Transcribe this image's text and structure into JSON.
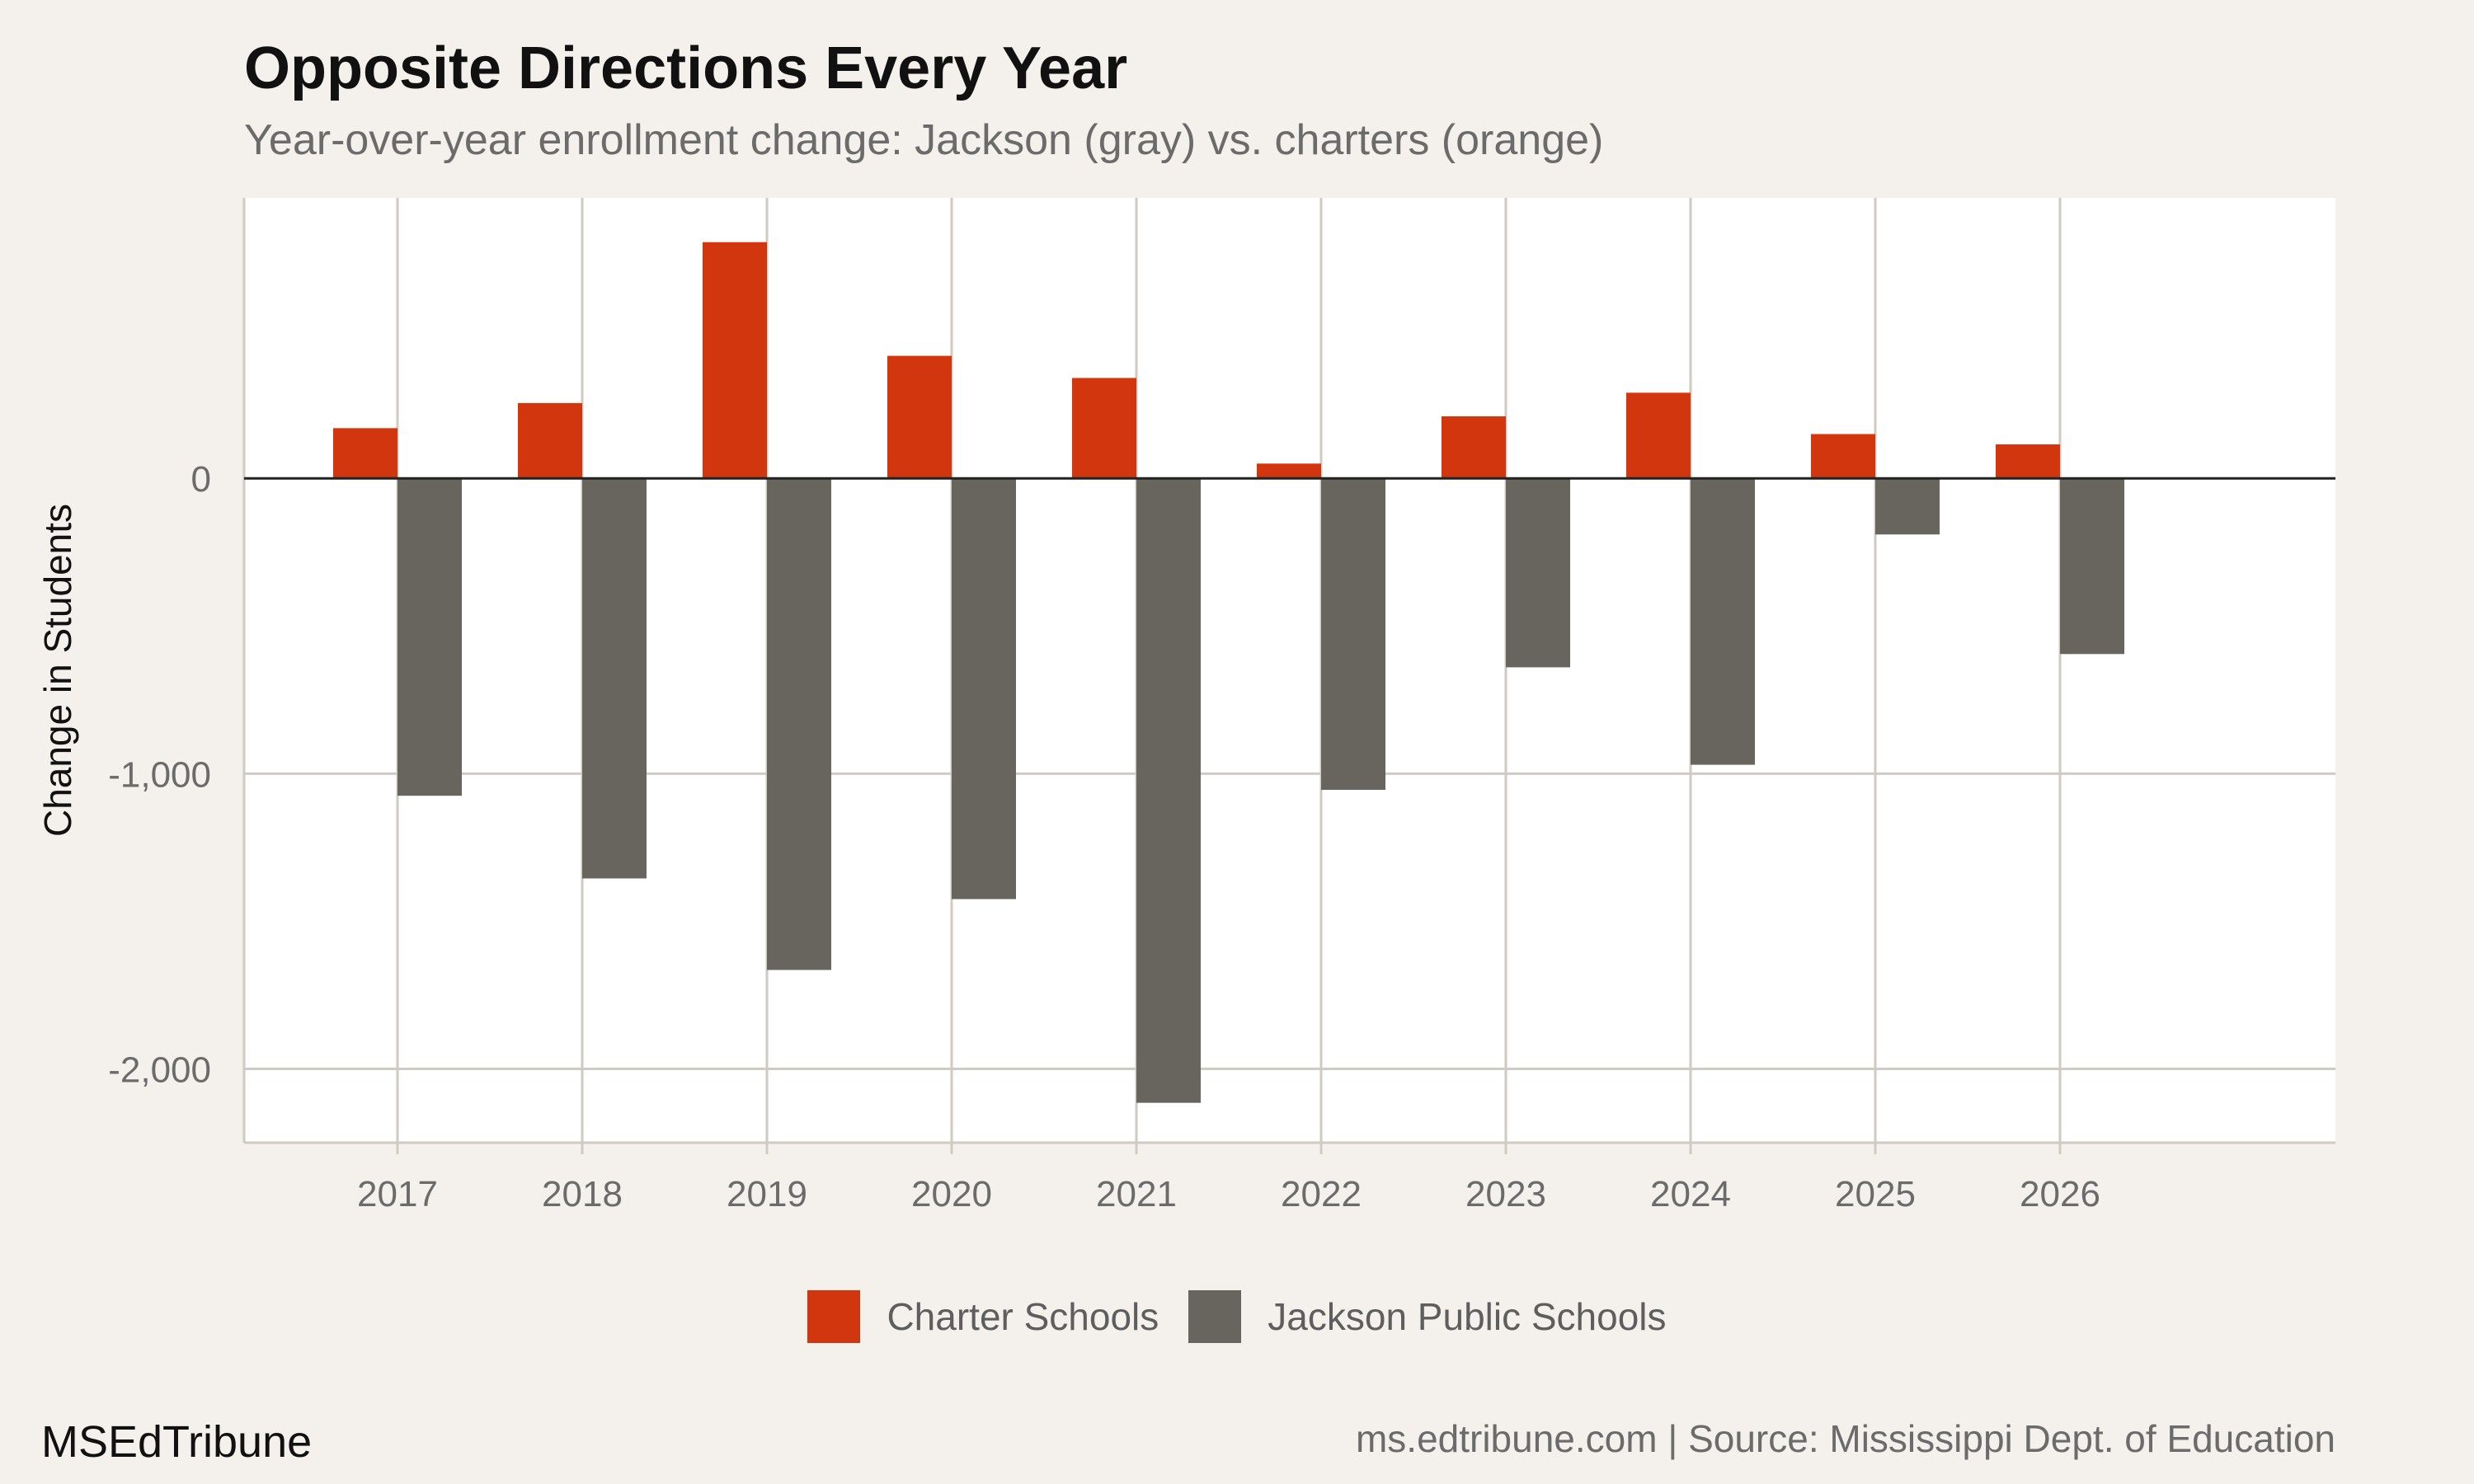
{
  "title": "Opposite Directions Every Year",
  "subtitle": "Year-over-year enrollment change: Jackson (gray) vs. charters (orange)",
  "footer": {
    "brand": "MSEdTribune",
    "source": "ms.edtribune.com | Source: Mississippi Dept. of Education"
  },
  "colors": {
    "charter": "#d2360e",
    "jackson": "#68645e",
    "background": "#f4f1ec",
    "panel": "#ffffff",
    "grid": "#cfcac2",
    "zero_line": "#222222"
  },
  "chart_data": {
    "type": "bar",
    "title": "Opposite Directions Every Year",
    "subtitle": "Year-over-year enrollment change: Jackson (gray) vs. charters (orange)",
    "xlabel": "",
    "ylabel": "Change in Students",
    "categories": [
      "2017",
      "2018",
      "2019",
      "2020",
      "2021",
      "2022",
      "2023",
      "2024",
      "2025",
      "2026"
    ],
    "series": [
      {
        "name": "Charter Schools",
        "color": "#d2360e",
        "values": [
          170,
          255,
          800,
          415,
          340,
          50,
          210,
          290,
          150,
          115
        ]
      },
      {
        "name": "Jackson Public Schools",
        "color": "#68645e",
        "values": [
          -1075,
          -1355,
          -1665,
          -1425,
          -2115,
          -1055,
          -640,
          -970,
          -190,
          -595
        ]
      }
    ],
    "ylim": [
      -2250,
      950
    ],
    "yticks": [
      0,
      -1000,
      -2000
    ],
    "ytick_labels": [
      "0",
      "-1,000",
      "-2,000"
    ],
    "grid": true,
    "legend_position": "bottom"
  }
}
